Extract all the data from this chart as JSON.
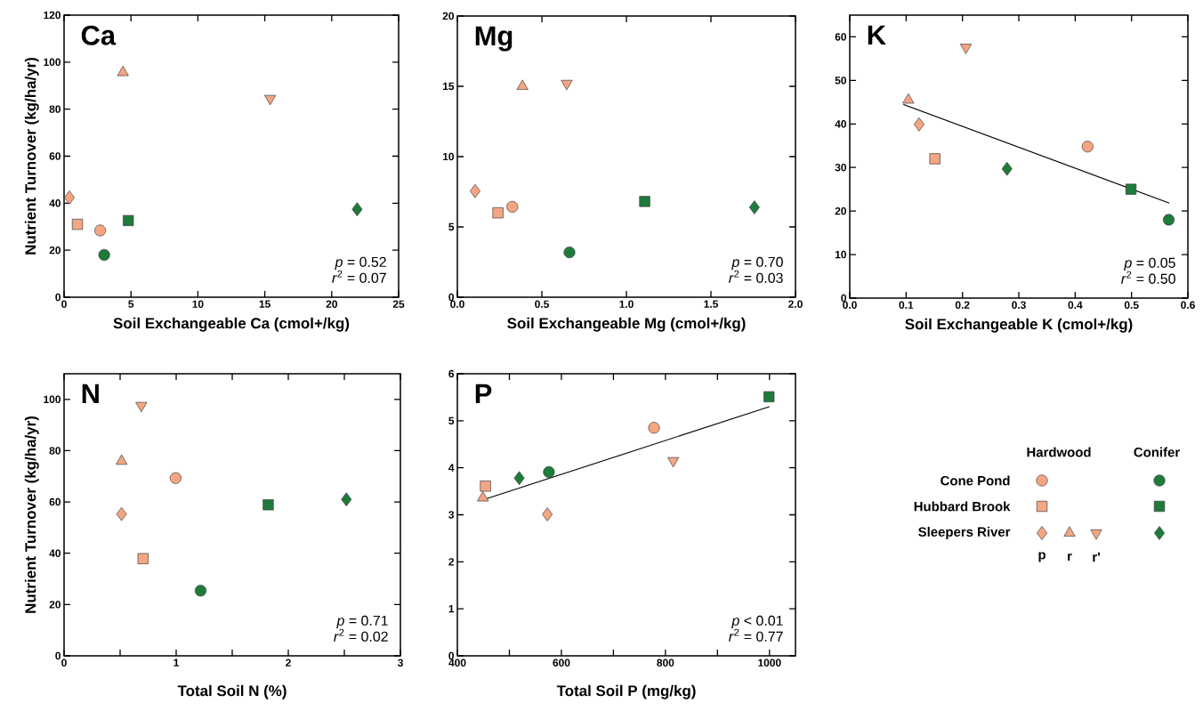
{
  "chart_data": [
    {
      "type": "scatter",
      "title": "Ca",
      "xlabel": "Soil Exchangeable Ca (cmol+/kg)",
      "ylabel": "Nutrient Turnover (kg/ha/yr)",
      "xlim": [
        0,
        25
      ],
      "ylim": [
        0,
        120
      ],
      "xticks": [
        0,
        5,
        10,
        15,
        20,
        25
      ],
      "yticks": [
        0,
        20,
        40,
        60,
        80,
        100,
        120
      ],
      "annotations": [
        "*p* = 0.52",
        "*r*$^{2}$ = 0.07"
      ],
      "series": [
        {
          "color": "#f4a683",
          "marker": "circle",
          "x": [
            2.7
          ],
          "values": [
            28.4
          ]
        },
        {
          "color": "#f4a683",
          "marker": "square",
          "x": [
            1.0
          ],
          "values": [
            31
          ]
        },
        {
          "color": "#f4a683",
          "marker": "diamond",
          "x": [
            0.4
          ],
          "values": [
            42.4
          ]
        },
        {
          "color": "#f4a683",
          "marker": "triangle",
          "x": [
            4.4
          ],
          "values": [
            95.6
          ]
        },
        {
          "color": "#f4a683",
          "marker": "triangle-down",
          "x": [
            15.4
          ],
          "values": [
            84.5
          ]
        },
        {
          "color": "#1e7b3b",
          "marker": "circle",
          "x": [
            3.0
          ],
          "values": [
            18
          ]
        },
        {
          "color": "#1e7b3b",
          "marker": "square",
          "x": [
            4.8
          ],
          "values": [
            32.6
          ]
        },
        {
          "color": "#1e7b3b",
          "marker": "diamond",
          "x": [
            21.9
          ],
          "values": [
            37.4
          ]
        }
      ]
    },
    {
      "type": "scatter",
      "title": "Mg",
      "xlabel": "Soil Exchangeable Mg (cmol+/kg)",
      "xlim": [
        0,
        2
      ],
      "ylim": [
        0,
        20
      ],
      "xticks": [
        {
          "value": 0,
          "label": "0.0"
        },
        0.5,
        {
          "value": 1,
          "label": "1.0"
        },
        1.5,
        {
          "value": 2,
          "label": "2.0"
        }
      ],
      "yticks": [
        0,
        5,
        10,
        15,
        20
      ],
      "annotations": [
        "*p* = 0.70",
        "*r*$^{2}$ = 0.03"
      ],
      "series": [
        {
          "color": "#f4a683",
          "marker": "circle",
          "x": [
            0.325
          ],
          "values": [
            6.43
          ]
        },
        {
          "color": "#f4a683",
          "marker": "square",
          "x": [
            0.24
          ],
          "values": [
            6.0
          ]
        },
        {
          "color": "#f4a683",
          "marker": "diamond",
          "x": [
            0.105
          ],
          "values": [
            7.55
          ]
        },
        {
          "color": "#f4a683",
          "marker": "triangle",
          "x": [
            0.385
          ],
          "values": [
            15.0
          ]
        },
        {
          "color": "#f4a683",
          "marker": "triangle-down",
          "x": [
            0.647
          ],
          "values": [
            15.2
          ]
        },
        {
          "color": "#1e7b3b",
          "marker": "circle",
          "x": [
            0.663
          ],
          "values": [
            3.19
          ]
        },
        {
          "color": "#1e7b3b",
          "marker": "square",
          "x": [
            1.108
          ],
          "values": [
            6.81
          ]
        },
        {
          "color": "#1e7b3b",
          "marker": "diamond",
          "x": [
            1.757
          ],
          "values": [
            6.39
          ]
        }
      ]
    },
    {
      "type": "scatter",
      "title": "K",
      "xlabel": "Soil Exchangeable K (cmol+/kg)",
      "xlim": [
        0,
        0.6
      ],
      "ylim": [
        0,
        65
      ],
      "xticks": [
        {
          "value": 0,
          "label": "0.0"
        },
        0.1,
        0.2,
        0.3,
        0.4,
        0.5,
        0.6
      ],
      "yticks": [
        0,
        10,
        20,
        30,
        40,
        50,
        60
      ],
      "annotations": [
        "*p* = 0.05",
        "*r*$^{2}$ = 0.50"
      ],
      "series": [
        {
          "color": "#f4a683",
          "marker": "circle",
          "x": [
            0.422
          ],
          "values": [
            34.8
          ]
        },
        {
          "color": "#f4a683",
          "marker": "square",
          "x": [
            0.151
          ],
          "values": [
            32.0
          ]
        },
        {
          "color": "#f4a683",
          "marker": "diamond",
          "x": [
            0.123
          ],
          "values": [
            39.9
          ]
        },
        {
          "color": "#f4a683",
          "marker": "triangle",
          "x": [
            0.104
          ],
          "values": [
            45.5
          ]
        },
        {
          "color": "#f4a683",
          "marker": "triangle-down",
          "x": [
            0.206
          ],
          "values": [
            57.6
          ]
        },
        {
          "color": "#1e7b3b",
          "marker": "circle",
          "x": [
            0.566
          ],
          "values": [
            18.0
          ]
        },
        {
          "color": "#1e7b3b",
          "marker": "square",
          "x": [
            0.499
          ],
          "values": [
            25.0
          ]
        },
        {
          "color": "#1e7b3b",
          "marker": "diamond",
          "x": [
            0.279
          ],
          "values": [
            29.7
          ]
        },
        {
          "type": "line",
          "color": "#000000",
          "marker": "none",
          "x": [
            0.095,
            0.567
          ],
          "values": [
            44.5,
            21.8
          ]
        }
      ]
    },
    {
      "type": "scatter",
      "title": "N",
      "xlabel": "Total Soil N (%)",
      "ylabel": "Nutrient Turnover (kg/ha/yr)",
      "xlim": [
        0,
        3
      ],
      "ylim": [
        0,
        110
      ],
      "xticks": [
        0,
        {
          "value": 0.5,
          "label": null
        },
        1,
        {
          "value": 1.5,
          "label": null
        },
        2,
        {
          "value": 2.5,
          "label": null
        },
        3
      ],
      "yticks": [
        0,
        20,
        40,
        60,
        80,
        100
      ],
      "annotations": [
        "*p* = 0.71",
        "*r*$^{2}$ = 0.02"
      ],
      "series": [
        {
          "color": "#f4a683",
          "marker": "circle",
          "x": [
            0.995
          ],
          "values": [
            69.3
          ]
        },
        {
          "color": "#f4a683",
          "marker": "square",
          "x": [
            0.705
          ],
          "values": [
            37.9
          ]
        },
        {
          "color": "#f4a683",
          "marker": "diamond",
          "x": [
            0.513
          ],
          "values": [
            55.3
          ]
        },
        {
          "color": "#f4a683",
          "marker": "triangle",
          "x": [
            0.513
          ],
          "values": [
            75.9
          ]
        },
        {
          "color": "#f4a683",
          "marker": "triangle-down",
          "x": [
            0.689
          ],
          "values": [
            97.6
          ]
        },
        {
          "color": "#1e7b3b",
          "marker": "circle",
          "x": [
            1.218
          ],
          "values": [
            25.4
          ]
        },
        {
          "color": "#1e7b3b",
          "marker": "square",
          "x": [
            1.821
          ],
          "values": [
            58.9
          ]
        },
        {
          "color": "#1e7b3b",
          "marker": "diamond",
          "x": [
            2.518
          ],
          "values": [
            61.0
          ]
        }
      ]
    },
    {
      "type": "scatter",
      "title": "P",
      "xlabel": "Total Soil P (mg/kg)",
      "xlim": [
        400,
        1050
      ],
      "ylim": [
        0,
        6
      ],
      "xticks": [
        400,
        {
          "value": 500,
          "label": null
        },
        600,
        {
          "value": 700,
          "label": null
        },
        800,
        {
          "value": 900,
          "label": null
        },
        1000
      ],
      "yticks": [
        0,
        1,
        2,
        3,
        4,
        5,
        6
      ],
      "annotations": [
        "*p* < 0.01",
        "*r*$^{2}$ = 0.77"
      ],
      "series": [
        {
          "color": "#f4a683",
          "marker": "circle",
          "x": [
            778
          ],
          "values": [
            4.85
          ]
        },
        {
          "color": "#f4a683",
          "marker": "square",
          "x": [
            454
          ],
          "values": [
            3.61
          ]
        },
        {
          "color": "#f4a683",
          "marker": "diamond",
          "x": [
            573
          ],
          "values": [
            3.01
          ]
        },
        {
          "color": "#f4a683",
          "marker": "triangle",
          "x": [
            449
          ],
          "values": [
            3.36
          ]
        },
        {
          "color": "#f4a683",
          "marker": "triangle-down",
          "x": [
            815
          ],
          "values": [
            4.15
          ]
        },
        {
          "color": "#1e7b3b",
          "marker": "circle",
          "x": [
            576
          ],
          "values": [
            3.91
          ]
        },
        {
          "color": "#1e7b3b",
          "marker": "square",
          "x": [
            999
          ],
          "values": [
            5.51
          ]
        },
        {
          "color": "#1e7b3b",
          "marker": "diamond",
          "x": [
            519
          ],
          "values": [
            3.78
          ]
        },
        {
          "type": "line",
          "color": "#000000",
          "marker": "none",
          "x": [
            453,
            1000
          ],
          "values": [
            3.33,
            5.3
          ]
        }
      ]
    },
    {
      "type": "other",
      "annotations": [
        "Hardwood",
        "Conifer",
        "Cone Pond",
        "Hubbard Brook",
        "Sleepers River",
        "p",
        "r",
        "r'"
      ]
    }
  ]
}
